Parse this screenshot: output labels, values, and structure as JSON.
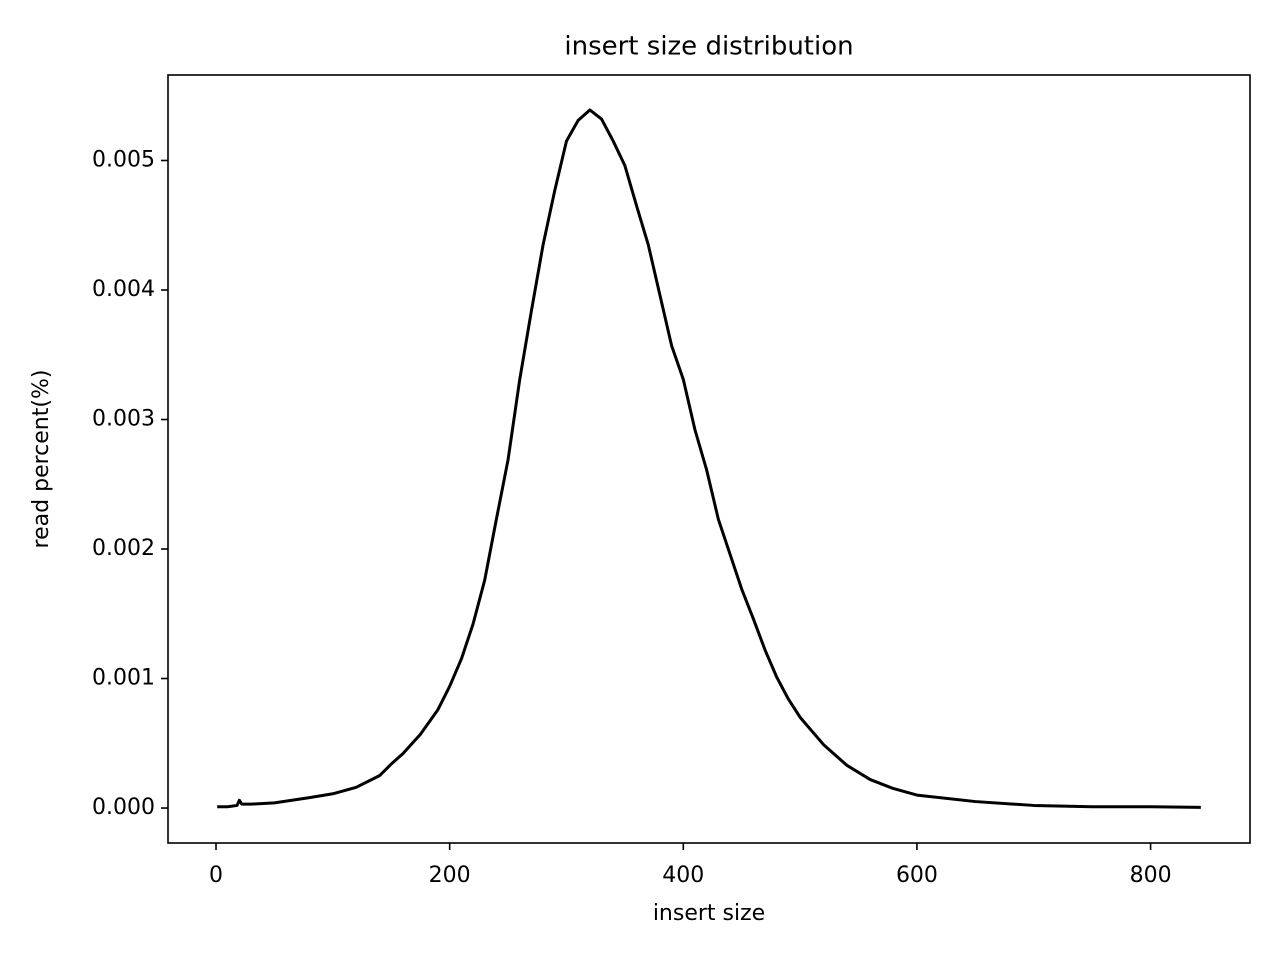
{
  "chart_data": {
    "type": "line",
    "title": "insert size distribution",
    "x_label": "insert size",
    "y_label": "read percent(%)",
    "x": [
      1,
      10,
      18,
      20,
      22,
      30,
      50,
      80,
      100,
      120,
      140,
      150,
      160,
      175,
      190,
      200,
      210,
      220,
      230,
      240,
      250,
      260,
      270,
      280,
      290,
      300,
      310,
      320,
      330,
      340,
      350,
      360,
      370,
      380,
      390,
      400,
      410,
      420,
      430,
      440,
      450,
      460,
      470,
      480,
      490,
      500,
      520,
      540,
      560,
      580,
      600,
      650,
      700,
      750,
      800,
      843
    ],
    "series": [
      {
        "name": "insert size",
        "color": "#000000",
        "values": [
          1e-05,
          1e-05,
          2e-05,
          6e-05,
          3e-05,
          3e-05,
          4e-05,
          8e-05,
          0.00011,
          0.00016,
          0.00025,
          0.00034,
          0.00042,
          0.00057,
          0.00076,
          0.00094,
          0.00115,
          0.00142,
          0.00176,
          0.00223,
          0.00269,
          0.00331,
          0.00384,
          0.00435,
          0.00477,
          0.00515,
          0.00531,
          0.00539,
          0.00532,
          0.00515,
          0.00496,
          0.00465,
          0.00435,
          0.00396,
          0.00357,
          0.00331,
          0.00292,
          0.00261,
          0.00223,
          0.00196,
          0.00169,
          0.00146,
          0.00122,
          0.00101,
          0.00084,
          0.0007,
          0.00049,
          0.00033,
          0.00022,
          0.00015,
          0.0001,
          5e-05,
          2e-05,
          1e-05,
          1e-05,
          5e-06
        ]
      }
    ],
    "xlim": [
      -41.1,
      885.1
    ],
    "ylim": [
      -0.00027,
      0.00566
    ],
    "xticks": [
      0,
      200,
      400,
      600,
      800
    ],
    "yticks": [
      {
        "value": 0,
        "label": "0.000"
      },
      {
        "value": 0.001,
        "label": "0.001"
      },
      {
        "value": 0.002,
        "label": "0.002"
      },
      {
        "value": 0.003,
        "label": "0.003"
      },
      {
        "value": 0.004,
        "label": "0.004"
      },
      {
        "value": 0.005,
        "label": "0.005"
      }
    ],
    "grid": false
  }
}
